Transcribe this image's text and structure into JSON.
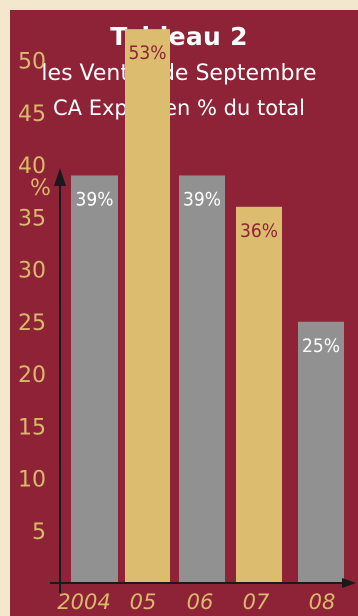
{
  "chart_data": {
    "type": "bar",
    "title": "Tableau 2",
    "subtitle": "les Ventes de Septembre",
    "subtitle2": "CA Export en % du total",
    "ylabel": "%",
    "categories": [
      "2004",
      "05",
      "06",
      "07",
      "08"
    ],
    "values": [
      39,
      53,
      39,
      36,
      25
    ],
    "data_labels": [
      "39%",
      "53%",
      "39%",
      "36%",
      "25%"
    ],
    "yticks": [
      5,
      10,
      15,
      20,
      25,
      30,
      35,
      40,
      45,
      50
    ],
    "ytick_labels": [
      "5",
      "10",
      "15",
      "20",
      "25",
      "30",
      "35",
      "40",
      "45",
      "50"
    ],
    "ylim": [
      0,
      57
    ],
    "grid": false,
    "bar_colors": [
      "#929191",
      "#dcbd6f",
      "#929191",
      "#dcbd6f",
      "#929191"
    ],
    "label_colors": [
      "#ffffff",
      "#8e2236",
      "#ffffff",
      "#8e2236",
      "#ffffff"
    ]
  },
  "colors": {
    "background": "#f3e8cd",
    "panel": "#8e2236",
    "accent_gold": "#d9b96b",
    "bar_gray": "#929191",
    "bar_gold": "#dcbd6f",
    "text_white": "#ffffff"
  }
}
